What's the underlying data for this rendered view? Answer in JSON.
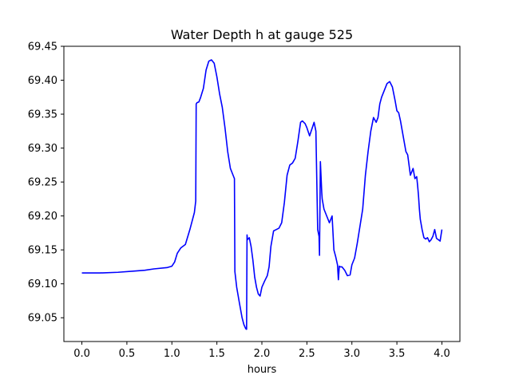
{
  "chart_data": {
    "type": "line",
    "title": "Water Depth h at gauge 525",
    "xlabel": "hours",
    "ylabel": "",
    "xlim": [
      -0.2,
      4.2
    ],
    "ylim": [
      69.015,
      69.45
    ],
    "grid": false,
    "x_ticks": [
      0.0,
      0.5,
      1.0,
      1.5,
      2.0,
      2.5,
      3.0,
      3.5,
      4.0
    ],
    "x_tick_labels": [
      "0.0",
      "0.5",
      "1.0",
      "1.5",
      "2.0",
      "2.5",
      "3.0",
      "3.5",
      "4.0"
    ],
    "y_ticks": [
      69.05,
      69.1,
      69.15,
      69.2,
      69.25,
      69.3,
      69.35,
      69.4,
      69.45
    ],
    "y_tick_labels": [
      "69.05",
      "69.10",
      "69.15",
      "69.20",
      "69.25",
      "69.30",
      "69.35",
      "69.40",
      "69.45"
    ],
    "series": [
      {
        "name": "",
        "color": "#0000ff",
        "x": [
          0.0,
          0.2,
          0.4,
          0.6,
          0.7,
          0.8,
          0.95,
          1.0,
          1.03,
          1.06,
          1.1,
          1.15,
          1.2,
          1.25,
          1.265,
          1.27,
          1.28,
          1.3,
          1.32,
          1.35,
          1.38,
          1.41,
          1.44,
          1.47,
          1.5,
          1.53,
          1.56,
          1.59,
          1.62,
          1.65,
          1.68,
          1.695,
          1.7,
          1.72,
          1.75,
          1.78,
          1.8,
          1.82,
          1.83,
          1.835,
          1.84,
          1.86,
          1.88,
          1.9,
          1.92,
          1.94,
          1.96,
          1.98,
          2.0,
          2.03,
          2.06,
          2.08,
          2.1,
          2.13,
          2.16,
          2.19,
          2.22,
          2.25,
          2.28,
          2.31,
          2.34,
          2.37,
          2.4,
          2.43,
          2.45,
          2.48,
          2.5,
          2.53,
          2.56,
          2.58,
          2.6,
          2.62,
          2.635,
          2.64,
          2.65,
          2.66,
          2.665,
          2.67,
          2.69,
          2.72,
          2.75,
          2.78,
          2.8,
          2.82,
          2.84,
          2.85,
          2.86,
          2.87,
          2.89,
          2.92,
          2.95,
          2.98,
          3.0,
          3.03,
          3.06,
          3.09,
          3.12,
          3.15,
          3.18,
          3.21,
          3.24,
          3.27,
          3.29,
          3.31,
          3.33,
          3.36,
          3.39,
          3.42,
          3.45,
          3.48,
          3.5,
          3.52,
          3.54,
          3.56,
          3.58,
          3.6,
          3.62,
          3.65,
          3.68,
          3.7,
          3.72,
          3.73,
          3.74,
          3.75,
          3.76,
          3.78,
          3.8,
          3.82,
          3.84,
          3.86,
          3.88,
          3.9,
          3.92,
          3.94,
          3.96,
          3.98,
          4.0
        ],
        "y": [
          69.116,
          69.116,
          69.117,
          69.119,
          69.12,
          69.122,
          69.124,
          69.126,
          69.132,
          69.145,
          69.153,
          69.158,
          69.18,
          69.205,
          69.222,
          69.365,
          69.367,
          69.368,
          69.375,
          69.388,
          69.415,
          69.428,
          69.43,
          69.425,
          69.405,
          69.38,
          69.36,
          69.33,
          69.295,
          69.27,
          69.26,
          69.255,
          69.118,
          69.095,
          69.072,
          69.05,
          69.04,
          69.034,
          69.033,
          69.172,
          69.165,
          69.168,
          69.155,
          69.135,
          69.11,
          69.095,
          69.085,
          69.082,
          69.095,
          69.104,
          69.112,
          69.125,
          69.155,
          69.178,
          69.18,
          69.182,
          69.19,
          69.22,
          69.26,
          69.275,
          69.278,
          69.285,
          69.31,
          69.338,
          69.34,
          69.336,
          69.33,
          69.318,
          69.33,
          69.338,
          69.325,
          69.18,
          69.17,
          69.142,
          69.28,
          69.25,
          69.235,
          69.225,
          69.21,
          69.2,
          69.19,
          69.2,
          69.15,
          69.14,
          69.128,
          69.106,
          69.126,
          69.125,
          69.125,
          69.12,
          69.112,
          69.113,
          69.128,
          69.138,
          69.16,
          69.185,
          69.21,
          69.26,
          69.295,
          69.325,
          69.345,
          69.338,
          69.345,
          69.365,
          69.375,
          69.385,
          69.395,
          69.398,
          69.39,
          69.37,
          69.355,
          69.352,
          69.34,
          69.325,
          69.31,
          69.295,
          69.29,
          69.26,
          69.27,
          69.255,
          69.258,
          69.245,
          69.23,
          69.21,
          69.195,
          69.18,
          69.168,
          69.166,
          69.168,
          69.162,
          69.165,
          69.17,
          69.18,
          69.167,
          69.165,
          69.163,
          69.18
        ]
      }
    ]
  }
}
